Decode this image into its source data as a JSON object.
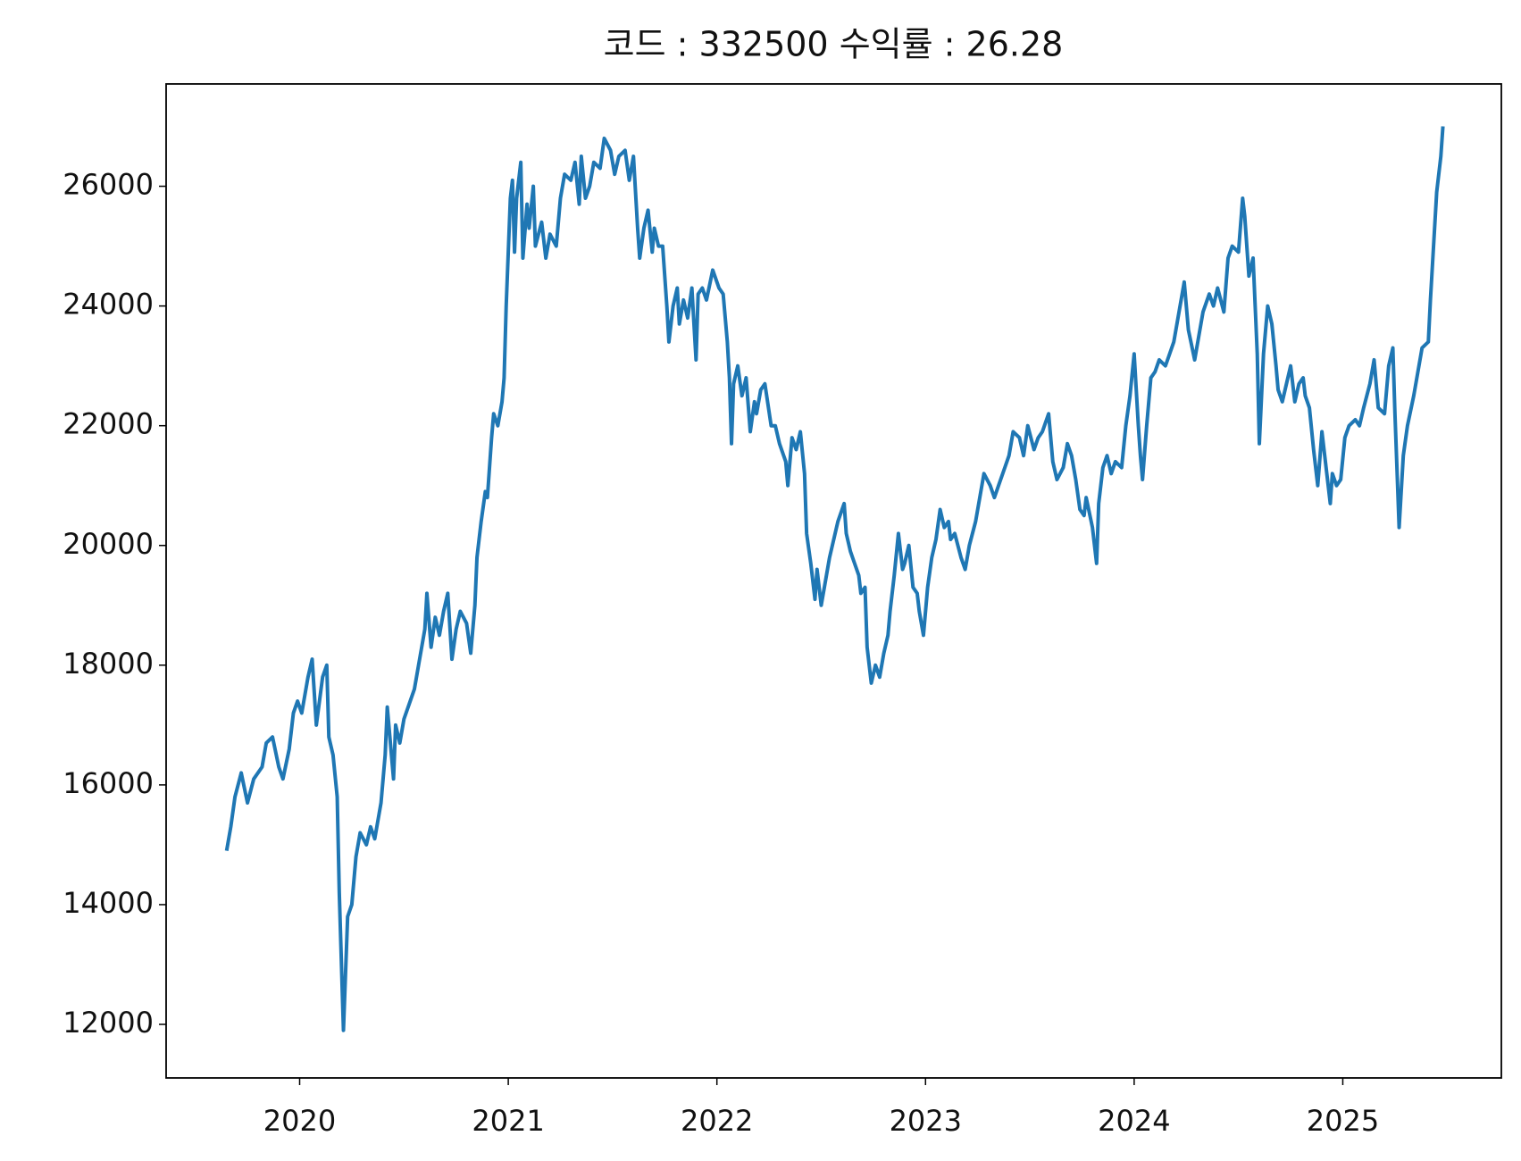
{
  "chart_data": {
    "type": "line",
    "title": "코드 : 332500 수익률 : 26.28",
    "color": "#1f77b4",
    "x": [
      2019.65,
      2019.67,
      2019.69,
      2019.72,
      2019.75,
      2019.78,
      2019.82,
      2019.84,
      2019.87,
      2019.9,
      2019.92,
      2019.95,
      2019.97,
      2019.99,
      2020.01,
      2020.04,
      2020.06,
      2020.08,
      2020.11,
      2020.13,
      2020.14,
      2020.16,
      2020.18,
      2020.19,
      2020.21,
      2020.23,
      2020.25,
      2020.27,
      2020.29,
      2020.32,
      2020.34,
      2020.36,
      2020.39,
      2020.41,
      2020.42,
      2020.45,
      2020.46,
      2020.48,
      2020.5,
      2020.53,
      2020.55,
      2020.57,
      2020.6,
      2020.61,
      2020.63,
      2020.65,
      2020.67,
      2020.69,
      2020.71,
      2020.73,
      2020.75,
      2020.77,
      2020.8,
      2020.82,
      2020.84,
      2020.85,
      2020.87,
      2020.89,
      2020.9,
      2020.92,
      2020.93,
      2020.95,
      2020.97,
      2020.98,
      2020.99,
      2021.01,
      2021.02,
      2021.03,
      2021.04,
      2021.06,
      2021.07,
      2021.09,
      2021.1,
      2021.12,
      2021.13,
      2021.16,
      2021.18,
      2021.2,
      2021.23,
      2021.25,
      2021.27,
      2021.3,
      2021.32,
      2021.34,
      2021.35,
      2021.37,
      2021.39,
      2021.41,
      2021.44,
      2021.46,
      2021.49,
      2021.51,
      2021.53,
      2021.56,
      2021.58,
      2021.6,
      2021.62,
      2021.63,
      2021.65,
      2021.67,
      2021.69,
      2021.7,
      2021.72,
      2021.74,
      2021.76,
      2021.77,
      2021.79,
      2021.81,
      2021.82,
      2021.84,
      2021.86,
      2021.88,
      2021.9,
      2021.91,
      2021.93,
      2021.95,
      2021.98,
      2022.0,
      2022.01,
      2022.03,
      2022.05,
      2022.06,
      2022.07,
      2022.08,
      2022.1,
      2022.12,
      2022.14,
      2022.16,
      2022.18,
      2022.19,
      2022.21,
      2022.23,
      2022.26,
      2022.28,
      2022.3,
      2022.33,
      2022.34,
      2022.36,
      2022.38,
      2022.4,
      2022.42,
      2022.43,
      2022.45,
      2022.47,
      2022.48,
      2022.5,
      2022.52,
      2022.54,
      2022.56,
      2022.58,
      2022.61,
      2022.62,
      2022.64,
      2022.66,
      2022.68,
      2022.69,
      2022.71,
      2022.72,
      2022.74,
      2022.76,
      2022.78,
      2022.8,
      2022.82,
      2022.83,
      2022.85,
      2022.87,
      2022.89,
      2022.9,
      2022.92,
      2022.94,
      2022.96,
      2022.97,
      2022.99,
      2023.01,
      2023.03,
      2023.05,
      2023.07,
      2023.09,
      2023.11,
      2023.12,
      2023.14,
      2023.17,
      2023.19,
      2023.21,
      2023.24,
      2023.26,
      2023.28,
      2023.31,
      2023.33,
      2023.35,
      2023.38,
      2023.4,
      2023.42,
      2023.45,
      2023.47,
      2023.49,
      2023.52,
      2023.54,
      2023.56,
      2023.59,
      2023.61,
      2023.63,
      2023.66,
      2023.68,
      2023.7,
      2023.72,
      2023.74,
      2023.76,
      2023.77,
      2023.8,
      2023.82,
      2023.83,
      2023.85,
      2023.87,
      2023.89,
      2023.91,
      2023.94,
      2023.96,
      2023.98,
      2024.0,
      2024.02,
      2024.03,
      2024.04,
      2024.06,
      2024.08,
      2024.1,
      2024.12,
      2024.15,
      2024.17,
      2024.19,
      2024.22,
      2024.24,
      2024.26,
      2024.29,
      2024.31,
      2024.33,
      2024.36,
      2024.38,
      2024.4,
      2024.43,
      2024.45,
      2024.47,
      2024.5,
      2024.52,
      2024.53,
      2024.55,
      2024.57,
      2024.59,
      2024.6,
      2024.62,
      2024.64,
      2024.66,
      2024.68,
      2024.69,
      2024.71,
      2024.73,
      2024.75,
      2024.77,
      2024.79,
      2024.81,
      2024.82,
      2024.84,
      2024.86,
      2024.88,
      2024.9,
      2024.92,
      2024.94,
      2024.95,
      2024.97,
      2024.99,
      2025.01,
      2025.03,
      2025.06,
      2025.08,
      2025.1,
      2025.13,
      2025.15,
      2025.17,
      2025.2,
      2025.22,
      2025.24,
      2025.25,
      2025.27,
      2025.29,
      2025.31,
      2025.34,
      2025.36,
      2025.38,
      2025.41,
      2025.42,
      2025.44,
      2025.45,
      2025.47,
      2025.48
    ],
    "values": [
      14900,
      15300,
      15800,
      16200,
      15700,
      16100,
      16300,
      16700,
      16800,
      16300,
      16100,
      16600,
      17200,
      17400,
      17200,
      17800,
      18100,
      17000,
      17800,
      18000,
      16800,
      16500,
      15800,
      14200,
      11900,
      13800,
      14000,
      14800,
      15200,
      15000,
      15300,
      15100,
      15700,
      16500,
      17300,
      16100,
      17000,
      16700,
      17100,
      17400,
      17600,
      18000,
      18600,
      19200,
      18300,
      18800,
      18500,
      18900,
      19200,
      18100,
      18600,
      18900,
      18700,
      18200,
      19000,
      19800,
      20400,
      20900,
      20800,
      21800,
      22200,
      22000,
      22400,
      22800,
      24000,
      25800,
      26100,
      24900,
      25800,
      26400,
      24800,
      25700,
      25300,
      26000,
      25000,
      25400,
      24800,
      25200,
      25000,
      25800,
      26200,
      26100,
      26400,
      25700,
      26500,
      25800,
      26000,
      26400,
      26300,
      26800,
      26600,
      26200,
      26500,
      26600,
      26100,
      26500,
      25300,
      24800,
      25300,
      25600,
      24900,
      25300,
      25000,
      25000,
      24000,
      23400,
      24000,
      24300,
      23700,
      24100,
      23800,
      24300,
      23100,
      24200,
      24300,
      24100,
      24600,
      24400,
      24300,
      24200,
      23400,
      22800,
      21700,
      22700,
      23000,
      22500,
      22800,
      21900,
      22400,
      22200,
      22600,
      22700,
      22000,
      22000,
      21700,
      21400,
      21000,
      21800,
      21600,
      21900,
      21200,
      20200,
      19700,
      19100,
      19600,
      19000,
      19400,
      19800,
      20100,
      20400,
      20700,
      20200,
      19900,
      19700,
      19500,
      19200,
      19300,
      18300,
      17700,
      18000,
      17800,
      18200,
      18500,
      18900,
      19500,
      20200,
      19600,
      19700,
      20000,
      19300,
      19200,
      18900,
      18500,
      19300,
      19800,
      20100,
      20600,
      20300,
      20400,
      20100,
      20200,
      19800,
      19600,
      20000,
      20400,
      20800,
      21200,
      21000,
      20800,
      21000,
      21300,
      21500,
      21900,
      21800,
      21500,
      22000,
      21600,
      21800,
      21900,
      22200,
      21400,
      21100,
      21300,
      21700,
      21500,
      21100,
      20600,
      20500,
      20800,
      20300,
      19700,
      20700,
      21300,
      21500,
      21200,
      21400,
      21300,
      22000,
      22500,
      23200,
      22000,
      21500,
      21100,
      22000,
      22800,
      22900,
      23100,
      23000,
      23200,
      23400,
      24000,
      24400,
      23600,
      23100,
      23500,
      23900,
      24200,
      24000,
      24300,
      23900,
      24800,
      25000,
      24900,
      25800,
      25500,
      24500,
      24800,
      23200,
      21700,
      23200,
      24000,
      23700,
      23000,
      22600,
      22400,
      22700,
      23000,
      22400,
      22700,
      22800,
      22500,
      22300,
      21600,
      21000,
      21900,
      21300,
      20700,
      21200,
      21000,
      21100,
      21800,
      22000,
      22100,
      22000,
      22300,
      22700,
      23100,
      22300,
      22200,
      23000,
      23300,
      22200,
      20300,
      21500,
      22000,
      22500,
      22900,
      23300,
      23400,
      24100,
      25300,
      25900,
      26500,
      27000
    ],
    "xlim": [
      2019.36,
      2025.76
    ],
    "xticks": [
      2020,
      2021,
      2022,
      2023,
      2024,
      2025
    ],
    "ylim": [
      11105,
      27709
    ],
    "yticks": [
      12000,
      14000,
      16000,
      18000,
      20000,
      22000,
      24000,
      26000
    ]
  }
}
